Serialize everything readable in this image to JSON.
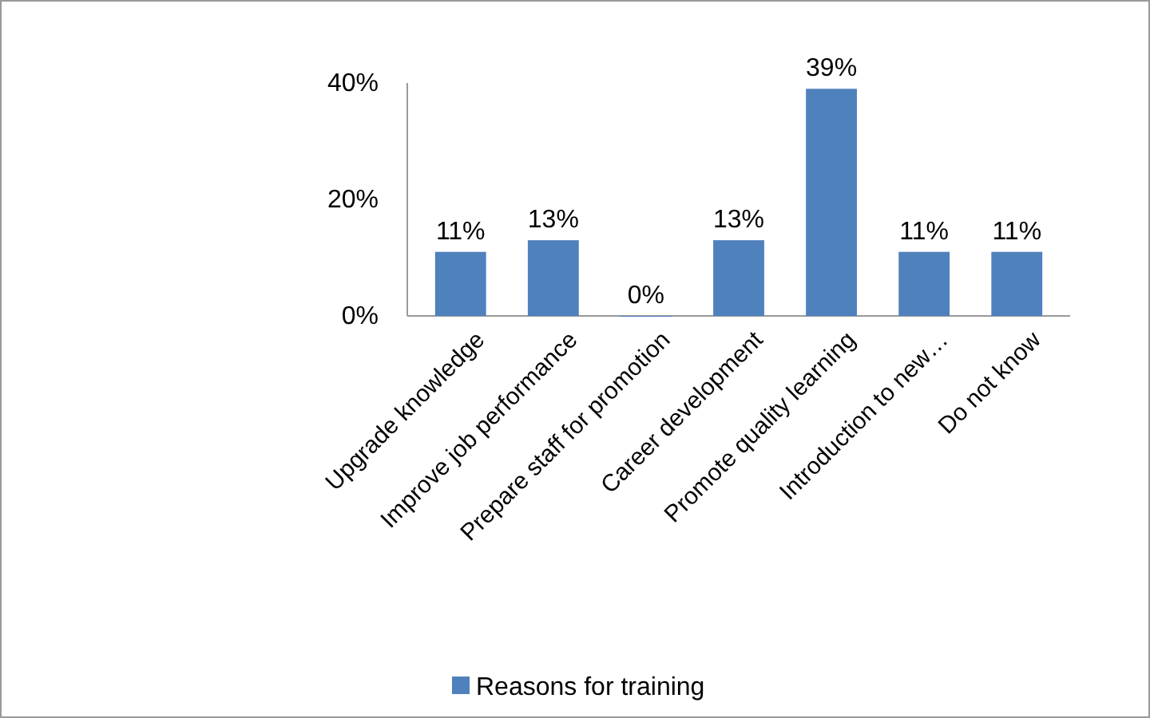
{
  "chart_data": {
    "type": "bar",
    "categories": [
      "Upgrade knowledge",
      "Improve job performance",
      "Prepare staff for promotion",
      "Career development",
      "Promote quality learning",
      "Introduction to new…",
      "Do not know"
    ],
    "series": [
      {
        "name": "Reasons for training",
        "color": "#4f81bd",
        "values": [
          11,
          13,
          0,
          13,
          39,
          11,
          11
        ]
      }
    ],
    "value_labels": [
      "11%",
      "13%",
      "0%",
      "13%",
      "39%",
      "11%",
      "11%"
    ],
    "ylim": [
      0,
      40
    ],
    "yticks": [
      {
        "value": 0,
        "label": "0%"
      },
      {
        "value": 20,
        "label": "20%"
      },
      {
        "value": 40,
        "label": "40%"
      }
    ],
    "grid": false,
    "legend": "bottom"
  }
}
